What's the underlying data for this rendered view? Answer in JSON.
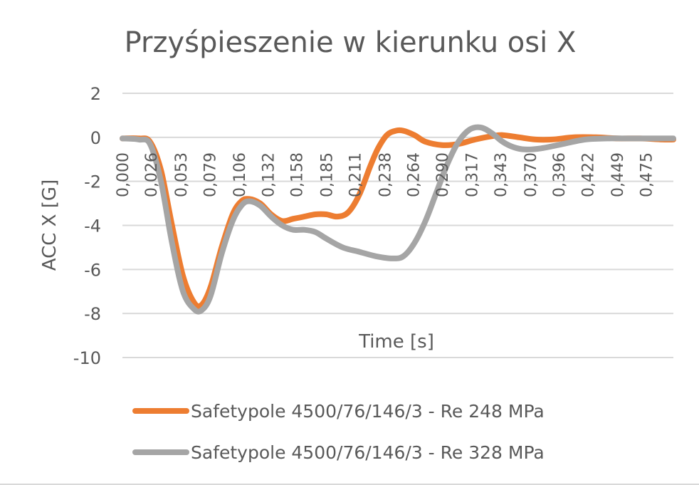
{
  "chart_data": {
    "type": "line",
    "title": "Przyśpieszenie w  kierunku osi X",
    "xlabel": "Time [s]",
    "ylabel": "ACC X [G]",
    "ylim": [
      -10,
      2
    ],
    "yticks": [
      2,
      0,
      -2,
      -4,
      -6,
      -8,
      -10
    ],
    "xlim": [
      0,
      0.5
    ],
    "xtick_labels": [
      "0,000",
      "0,026",
      "0,053",
      "0,079",
      "0,106",
      "0,132",
      "0,158",
      "0,185",
      "0,211",
      "0,238",
      "0,264",
      "0,290",
      "0,317",
      "0,343",
      "0,370",
      "0,396",
      "0,422",
      "0,449",
      "0,475"
    ],
    "xtick_values": [
      0.0,
      0.026,
      0.053,
      0.079,
      0.106,
      0.132,
      0.158,
      0.185,
      0.211,
      0.238,
      0.264,
      0.29,
      0.317,
      0.343,
      0.37,
      0.396,
      0.422,
      0.449,
      0.475
    ],
    "grid": true,
    "legend_position": "bottom",
    "series": [
      {
        "name": "Safetypole 4500/76/146/3 - Re 248 MPa",
        "color": "#ED7D31",
        "x": [
          0.0,
          0.015,
          0.025,
          0.035,
          0.045,
          0.055,
          0.065,
          0.072,
          0.08,
          0.09,
          0.1,
          0.108,
          0.115,
          0.125,
          0.135,
          0.145,
          0.155,
          0.165,
          0.175,
          0.185,
          0.195,
          0.205,
          0.215,
          0.225,
          0.232,
          0.24,
          0.248,
          0.255,
          0.265,
          0.275,
          0.29,
          0.305,
          0.32,
          0.335,
          0.345,
          0.36,
          0.375,
          0.39,
          0.41,
          0.43,
          0.45,
          0.47,
          0.49,
          0.5
        ],
        "y": [
          -0.05,
          -0.05,
          -0.2,
          -1.5,
          -4.0,
          -6.3,
          -7.5,
          -7.6,
          -6.8,
          -5.0,
          -3.5,
          -2.9,
          -2.8,
          -3.0,
          -3.5,
          -3.8,
          -3.7,
          -3.6,
          -3.5,
          -3.5,
          -3.6,
          -3.4,
          -2.6,
          -1.3,
          -0.5,
          0.1,
          0.3,
          0.3,
          0.1,
          -0.2,
          -0.35,
          -0.3,
          -0.1,
          0.05,
          0.1,
          0.0,
          -0.1,
          -0.1,
          0.0,
          0.0,
          -0.05,
          -0.05,
          -0.1,
          -0.1
        ]
      },
      {
        "name": "Safetypole 4500/76/146/3 - Re 328 MPa",
        "color": "#A5A5A5",
        "x": [
          0.0,
          0.015,
          0.025,
          0.035,
          0.045,
          0.055,
          0.065,
          0.072,
          0.08,
          0.09,
          0.1,
          0.108,
          0.115,
          0.125,
          0.135,
          0.145,
          0.155,
          0.165,
          0.175,
          0.185,
          0.2,
          0.215,
          0.23,
          0.245,
          0.255,
          0.265,
          0.275,
          0.285,
          0.295,
          0.305,
          0.315,
          0.325,
          0.335,
          0.345,
          0.355,
          0.365,
          0.38,
          0.4,
          0.42,
          0.44,
          0.46,
          0.48,
          0.5
        ],
        "y": [
          -0.05,
          -0.1,
          -0.3,
          -2.0,
          -4.8,
          -7.0,
          -7.8,
          -7.85,
          -7.2,
          -5.3,
          -3.8,
          -3.1,
          -2.9,
          -3.1,
          -3.6,
          -4.0,
          -4.2,
          -4.2,
          -4.3,
          -4.6,
          -5.0,
          -5.2,
          -5.4,
          -5.5,
          -5.4,
          -4.8,
          -3.8,
          -2.5,
          -1.2,
          -0.2,
          0.35,
          0.45,
          0.2,
          -0.2,
          -0.45,
          -0.55,
          -0.5,
          -0.3,
          -0.1,
          -0.05,
          -0.05,
          -0.05,
          -0.05
        ]
      }
    ]
  }
}
